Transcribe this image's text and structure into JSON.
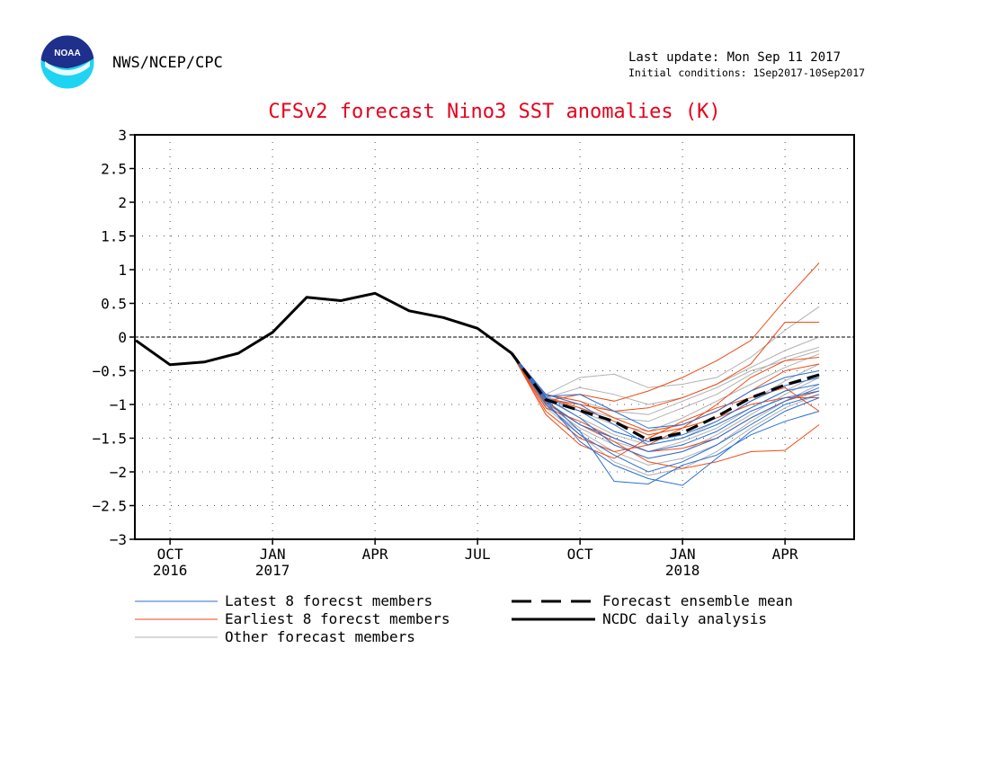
{
  "header": {
    "org": "NWS/NCEP/CPC",
    "last_update": "Last update: Mon Sep 11 2017",
    "initial_conditions": "Initial conditions: 1Sep2017-10Sep2017",
    "logo_text": "NOAA"
  },
  "chart_data": {
    "type": "line",
    "title": "CFSv2 forecast Nino3 SST anomalies (K)",
    "xlabel": "",
    "ylabel": "",
    "ylim": [
      -3,
      3
    ],
    "x_range_months": [
      "2016-09",
      "2018-05"
    ],
    "y_ticks": [
      "3",
      "2.5",
      "2",
      "1.5",
      "1",
      "0.5",
      "0",
      "−0.5",
      "−1",
      "−1.5",
      "−2",
      "−2.5",
      "−3"
    ],
    "x_ticks": [
      {
        "month": "Oct 2016",
        "label": "OCT",
        "year": "2016"
      },
      {
        "month": "Jan 2017",
        "label": "JAN",
        "year": "2017"
      },
      {
        "month": "Apr 2017",
        "label": "APR",
        "year": ""
      },
      {
        "month": "Jul 2017",
        "label": "JUL",
        "year": ""
      },
      {
        "month": "Oct 2017",
        "label": "OCT",
        "year": ""
      },
      {
        "month": "Jan 2018",
        "label": "JAN",
        "year": "2018"
      },
      {
        "month": "Apr 2018",
        "label": "APR",
        "year": ""
      }
    ],
    "grid": true,
    "zero_line": true,
    "observed": {
      "name": "NCDC daily analysis",
      "color": "#000000",
      "x": [
        "Sep 2016",
        "Oct 2016",
        "Nov 2016",
        "Dec 2016",
        "Jan 2017",
        "Feb 2017",
        "Mar 2017",
        "Apr 2017",
        "May 2017",
        "Jun 2017",
        "Jul 2017",
        "Aug 2017"
      ],
      "values": [
        -0.05,
        -0.41,
        -0.37,
        -0.24,
        0.07,
        0.59,
        0.54,
        0.65,
        0.39,
        0.29,
        0.13,
        -0.24
      ]
    },
    "ensemble_mean": {
      "name": "Forecast ensemble mean",
      "color": "#000000",
      "x": [
        "Aug 2017",
        "Sep 2017",
        "Oct 2017",
        "Nov 2017",
        "Dec 2017",
        "Jan 2018",
        "Feb 2018",
        "Mar 2018",
        "Apr 2018",
        "May 2018"
      ],
      "values": [
        -0.24,
        -0.93,
        -1.09,
        -1.25,
        -1.53,
        -1.42,
        -1.18,
        -0.9,
        -0.71,
        -0.56
      ]
    },
    "members": {
      "x": [
        "Aug 2017",
        "Sep 2017",
        "Oct 2017",
        "Nov 2017",
        "Dec 2017",
        "Jan 2018",
        "Feb 2018",
        "Mar 2018",
        "Apr 2018",
        "May 2018"
      ],
      "groups": [
        {
          "name": "Latest 8 forecst members",
          "color": "#2a6fd4",
          "series": [
            [
              -0.24,
              -0.92,
              -1.4,
              -2.14,
              -2.18,
              -1.9,
              -1.75,
              -1.45,
              -1.25,
              -1.1
            ],
            [
              -0.24,
              -0.95,
              -1.55,
              -1.9,
              -2.1,
              -2.2,
              -1.8,
              -1.4,
              -1.1,
              -0.9
            ],
            [
              -0.24,
              -0.9,
              -1.2,
              -1.6,
              -1.8,
              -1.7,
              -1.5,
              -1.2,
              -0.95,
              -0.75
            ],
            [
              -0.24,
              -0.85,
              -1.0,
              -1.3,
              -1.6,
              -1.5,
              -1.3,
              -1.05,
              -0.8,
              -0.7
            ],
            [
              -0.24,
              -0.95,
              -1.3,
              -1.5,
              -1.7,
              -1.6,
              -1.4,
              -1.1,
              -0.9,
              -0.8
            ],
            [
              -0.24,
              -0.88,
              -0.85,
              -1.1,
              -1.35,
              -1.3,
              -1.1,
              -0.8,
              -0.6,
              -0.5
            ],
            [
              -0.24,
              -1.0,
              -1.45,
              -1.75,
              -2.0,
              -1.85,
              -1.6,
              -1.3,
              -1.0,
              -0.85
            ],
            [
              -0.24,
              -0.9,
              -1.1,
              -1.4,
              -1.55,
              -1.45,
              -1.25,
              -0.95,
              -0.72,
              -0.6
            ]
          ]
        },
        {
          "name": "Earliest 8 forecst members",
          "color": "#f04a14",
          "series": [
            [
              -0.24,
              -0.95,
              -0.85,
              -0.95,
              -0.8,
              -0.6,
              -0.35,
              -0.05,
              0.55,
              1.1
            ],
            [
              -0.24,
              -0.92,
              -1.0,
              -1.1,
              -1.05,
              -0.9,
              -0.7,
              -0.4,
              0.22,
              0.22
            ],
            [
              -0.24,
              -1.1,
              -1.5,
              -1.7,
              -1.6,
              -1.35,
              -1.0,
              -0.6,
              -0.35,
              -0.3
            ],
            [
              -0.24,
              -0.85,
              -0.95,
              -1.2,
              -1.4,
              -1.3,
              -1.1,
              -0.8,
              -0.5,
              -0.4
            ],
            [
              -0.24,
              -1.05,
              -1.25,
              -1.5,
              -1.7,
              -1.65,
              -1.5,
              -1.2,
              -0.95,
              -0.8
            ],
            [
              -0.24,
              -0.98,
              -1.3,
              -1.55,
              -1.85,
              -1.95,
              -1.85,
              -1.7,
              -1.68,
              -1.3
            ],
            [
              -0.24,
              -0.9,
              -1.05,
              -1.25,
              -1.45,
              -1.35,
              -1.2,
              -1.0,
              -0.9,
              -0.9
            ],
            [
              -0.24,
              -1.15,
              -1.6,
              -1.8,
              -1.5,
              -1.25,
              -1.05,
              -0.9,
              -0.75,
              -1.1
            ]
          ]
        },
        {
          "name": "Other forecast members",
          "color": "#b0b0b0",
          "series": [
            [
              -0.24,
              -0.85,
              -0.6,
              -0.55,
              -0.75,
              -0.7,
              -0.6,
              -0.3,
              0.1,
              0.45
            ],
            [
              -0.24,
              -0.9,
              -0.75,
              -0.85,
              -1.0,
              -0.9,
              -0.7,
              -0.45,
              -0.2,
              0.0
            ],
            [
              -0.24,
              -0.95,
              -1.1,
              -1.3,
              -1.4,
              -1.2,
              -0.95,
              -0.7,
              -0.45,
              -0.25
            ],
            [
              -0.24,
              -1.0,
              -1.35,
              -1.6,
              -1.8,
              -1.7,
              -1.45,
              -1.15,
              -0.85,
              -0.6
            ],
            [
              -0.24,
              -0.88,
              -1.05,
              -1.2,
              -1.25,
              -1.05,
              -0.85,
              -0.55,
              -0.3,
              -0.15
            ],
            [
              -0.24,
              -1.05,
              -1.45,
              -1.85,
              -2.05,
              -1.95,
              -1.7,
              -1.35,
              -1.05,
              -0.85
            ],
            [
              -0.24,
              -0.92,
              -1.2,
              -1.45,
              -1.6,
              -1.5,
              -1.25,
              -0.95,
              -0.65,
              -0.4
            ],
            [
              -0.24,
              -0.97,
              -1.3,
              -1.55,
              -1.7,
              -1.55,
              -1.35,
              -1.05,
              -0.8,
              -0.55
            ],
            [
              -0.24,
              -0.86,
              -0.95,
              -1.1,
              -1.15,
              -0.95,
              -0.75,
              -0.5,
              -0.35,
              -0.2
            ],
            [
              -0.24,
              -1.02,
              -1.4,
              -1.7,
              -1.9,
              -1.8,
              -1.6,
              -1.25,
              -0.95,
              -0.7
            ]
          ]
        }
      ]
    },
    "legend": [
      {
        "label": "Latest 8 forecst members",
        "style": "thin",
        "color": "#2a6fd4"
      },
      {
        "label": "Earliest 8 forecst members",
        "style": "thin",
        "color": "#f04a14"
      },
      {
        "label": "Other forecast members",
        "style": "thin",
        "color": "#b0b0b0"
      },
      {
        "label": "Forecast ensemble mean",
        "style": "dashed",
        "color": "#000000"
      },
      {
        "label": "NCDC daily analysis",
        "style": "solid",
        "color": "#000000"
      }
    ]
  },
  "colors": {
    "title": "#e8001b",
    "logo_blue": "#1e2f8c",
    "logo_cyan": "#1fd4f2"
  }
}
